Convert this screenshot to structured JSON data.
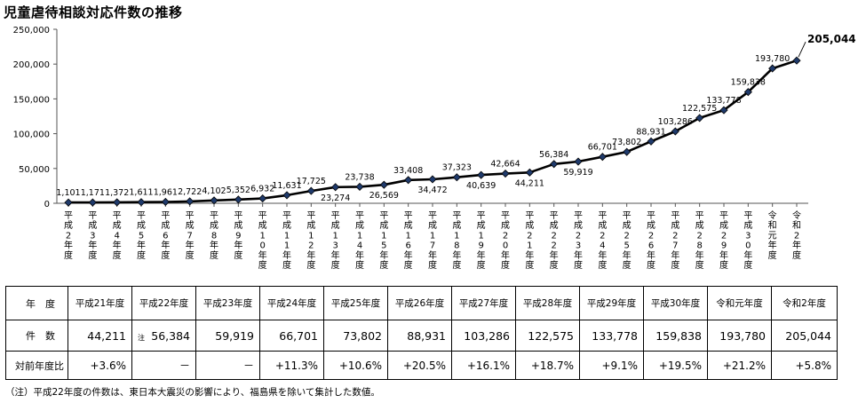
{
  "page": {
    "title": "児童虐待相談対応件数の推移",
    "footnote": "（注）平成22年度の件数は、東日本大震災の影響により、福島県を除いて集計した数値。"
  },
  "chart_data": {
    "type": "line",
    "title": "児童虐待相談対応件数の推移",
    "xlabel": "",
    "ylabel": "",
    "ylim": [
      0,
      250000
    ],
    "yticks": [
      0,
      50000,
      100000,
      150000,
      200000,
      250000
    ],
    "ytick_labels": [
      "0",
      "50,000",
      "100,000",
      "150,000",
      "200,000",
      "250,000"
    ],
    "grid": false,
    "legend": "none",
    "line_color": "#000000",
    "marker_fill": "#1f3a6b",
    "categories": [
      "平成2年度",
      "平成3年度",
      "平成4年度",
      "平成5年度",
      "平成6年度",
      "平成7年度",
      "平成8年度",
      "平成9年度",
      "平成10年度",
      "平成11年度",
      "平成12年度",
      "平成13年度",
      "平成14年度",
      "平成15年度",
      "平成16年度",
      "平成17年度",
      "平成18年度",
      "平成19年度",
      "平成20年度",
      "平成21年度",
      "平成22年度",
      "平成23年度",
      "平成24年度",
      "平成25年度",
      "平成26年度",
      "平成27年度",
      "平成28年度",
      "平成29年度",
      "平成30年度",
      "令和元年度",
      "令和2年度"
    ],
    "x_label_chars": [
      [
        "平",
        "成",
        "2",
        "年",
        "度"
      ],
      [
        "平",
        "成",
        "3",
        "年",
        "度"
      ],
      [
        "平",
        "成",
        "4",
        "年",
        "度"
      ],
      [
        "平",
        "成",
        "5",
        "年",
        "度"
      ],
      [
        "平",
        "成",
        "6",
        "年",
        "度"
      ],
      [
        "平",
        "成",
        "7",
        "年",
        "度"
      ],
      [
        "平",
        "成",
        "8",
        "年",
        "度"
      ],
      [
        "平",
        "成",
        "9",
        "年",
        "度"
      ],
      [
        "平",
        "成",
        "1",
        "0",
        "年",
        "度"
      ],
      [
        "平",
        "成",
        "1",
        "1",
        "年",
        "度"
      ],
      [
        "平",
        "成",
        "1",
        "2",
        "年",
        "度"
      ],
      [
        "平",
        "成",
        "1",
        "3",
        "年",
        "度"
      ],
      [
        "平",
        "成",
        "1",
        "4",
        "年",
        "度"
      ],
      [
        "平",
        "成",
        "1",
        "5",
        "年",
        "度"
      ],
      [
        "平",
        "成",
        "1",
        "6",
        "年",
        "度"
      ],
      [
        "平",
        "成",
        "1",
        "7",
        "年",
        "度"
      ],
      [
        "平",
        "成",
        "1",
        "8",
        "年",
        "度"
      ],
      [
        "平",
        "成",
        "1",
        "9",
        "年",
        "度"
      ],
      [
        "平",
        "成",
        "2",
        "0",
        "年",
        "度"
      ],
      [
        "平",
        "成",
        "2",
        "1",
        "年",
        "度"
      ],
      [
        "平",
        "成",
        "2",
        "2",
        "年",
        "度"
      ],
      [
        "平",
        "成",
        "2",
        "3",
        "年",
        "度"
      ],
      [
        "平",
        "成",
        "2",
        "4",
        "年",
        "度"
      ],
      [
        "平",
        "成",
        "2",
        "5",
        "年",
        "度"
      ],
      [
        "平",
        "成",
        "2",
        "6",
        "年",
        "度"
      ],
      [
        "平",
        "成",
        "2",
        "7",
        "年",
        "度"
      ],
      [
        "平",
        "成",
        "2",
        "8",
        "年",
        "度"
      ],
      [
        "平",
        "成",
        "2",
        "9",
        "年",
        "度"
      ],
      [
        "平",
        "成",
        "3",
        "0",
        "年",
        "度"
      ],
      [
        "令",
        "和",
        "元",
        "年",
        "度"
      ],
      [
        "令",
        "和",
        "2",
        "年",
        "度"
      ]
    ],
    "values": [
      1101,
      1171,
      1372,
      1611,
      1961,
      2722,
      4102,
      5352,
      6932,
      11631,
      17725,
      23274,
      23738,
      26569,
      33408,
      34472,
      37323,
      40639,
      42664,
      44211,
      56384,
      59919,
      66701,
      73802,
      88931,
      103286,
      122575,
      133778,
      159838,
      193780,
      205044
    ],
    "value_labels": [
      "1,101",
      "1,171",
      "1,372",
      "1,611",
      "1,961",
      "2,722",
      "4,102",
      "5,352",
      "6,932",
      "11,631",
      "17,725",
      "23,274",
      "23,738",
      "26,569",
      "33,408",
      "34,472",
      "37,323",
      "40,639",
      "42,664",
      "44,211",
      "56,384",
      "59,919",
      "66,701",
      "73,802",
      "88,931",
      "103,286",
      "122,575",
      "133,778",
      "159,838",
      "193,780",
      "205,044"
    ],
    "label_side": [
      "above",
      "above",
      "above",
      "above",
      "above",
      "above",
      "above",
      "above",
      "above",
      "above",
      "above",
      "below",
      "above",
      "below",
      "above",
      "below",
      "above",
      "below",
      "above",
      "below",
      "above",
      "below",
      "above",
      "above",
      "above",
      "above",
      "above",
      "above",
      "above",
      "above",
      "callout"
    ]
  },
  "table": {
    "headers": [
      "年　度",
      "平成21年度",
      "平成22年度",
      "平成23年度",
      "平成24年度",
      "平成25年度",
      "平成26年度",
      "平成27年度",
      "平成28年度",
      "平成29年度",
      "平成30年度",
      "令和元年度",
      "令和2年度"
    ],
    "count_label": "件　数",
    "counts": [
      "44,211",
      "56,384",
      "59,919",
      "66,701",
      "73,802",
      "88,931",
      "103,286",
      "122,575",
      "133,778",
      "159,838",
      "193,780",
      "205,044"
    ],
    "count_note_mark": "注",
    "ratio_label": "対前年度比",
    "ratios": [
      "+3.6%",
      "－",
      "－",
      "+11.3%",
      "+10.6%",
      "+20.5%",
      "+16.1%",
      "+18.7%",
      "+9.1%",
      "+19.5%",
      "+21.2%",
      "+5.8%"
    ]
  }
}
